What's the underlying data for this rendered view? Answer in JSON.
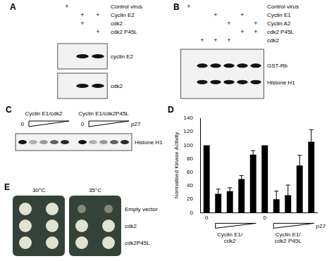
{
  "panels": [
    {
      "letter": "A",
      "rows": [
        {
          "label": "Control virus",
          "lanes": [
            "+",
            null,
            null
          ]
        },
        {
          "label": "Cyclin E2",
          "lanes": [
            null,
            "+",
            "+"
          ]
        },
        {
          "label": "cdk2",
          "lanes": [
            null,
            "+",
            null
          ]
        },
        {
          "label": "cdk2 P45L",
          "lanes": [
            null,
            null,
            "+"
          ]
        }
      ],
      "blots": [
        [
          "cyclin E2"
        ],
        [
          "cdk2"
        ]
      ]
    },
    {
      "letter": "B",
      "rows": [
        {
          "label": "Control virus",
          "lanes": [
            "+",
            null,
            null,
            null,
            null,
            null
          ]
        },
        {
          "label": "Cyclin E1",
          "lanes": [
            null,
            null,
            "+",
            null,
            "+",
            null
          ]
        },
        {
          "label": "Cyclin A2",
          "lanes": [
            null,
            null,
            null,
            "+",
            null,
            "+"
          ]
        },
        {
          "label": "cdk2 P45L",
          "lanes": [
            null,
            null,
            null,
            null,
            "+",
            "+"
          ]
        },
        {
          "label": "cdk2",
          "lanes": [
            null,
            "+",
            "+",
            "+",
            null,
            null
          ]
        }
      ],
      "blots": [
        [
          "GST-Rb",
          "Histone H1"
        ]
      ]
    },
    {
      "letter": "C",
      "groups": [
        "Cyclin E1/cdk2",
        "Cyclin E1/cdk2P45L"
      ],
      "zero": "0",
      "titrant": "p27",
      "blots": [
        [
          "Histone H1"
        ]
      ]
    },
    {
      "letter": "E",
      "columns": [
        "30°C",
        "35°C"
      ],
      "rows": [
        "Empty vector",
        "cdk2",
        "cdk2P45L"
      ]
    }
  ],
  "chart_data": {
    "letter": "D",
    "type": "bar",
    "ylabel": "Normalised Kinase Activity",
    "xlabel": "p27",
    "categories": [
      "0",
      null,
      null,
      null,
      null,
      "0",
      null,
      null,
      null,
      null
    ],
    "groups": [
      "Cyclin E1/ cdk2",
      "Cyclin E1/ cdk2 P45L"
    ],
    "values": [
      100,
      28,
      32,
      50,
      86,
      100,
      20,
      26,
      70,
      105
    ],
    "errors": [
      0,
      7,
      5,
      5,
      6,
      0,
      12,
      15,
      15,
      18
    ],
    "color": "#000000",
    "ylim": [
      0,
      140
    ],
    "yticks": [
      0,
      20,
      40,
      60,
      80,
      100,
      120,
      140
    ],
    "grid": false
  }
}
